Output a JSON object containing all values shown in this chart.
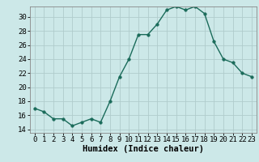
{
  "x": [
    0,
    1,
    2,
    3,
    4,
    5,
    6,
    7,
    8,
    9,
    10,
    11,
    12,
    13,
    14,
    15,
    16,
    17,
    18,
    19,
    20,
    21,
    22,
    23
  ],
  "y": [
    17,
    16.5,
    15.5,
    15.5,
    14.5,
    15,
    15.5,
    15,
    18,
    21.5,
    24,
    27.5,
    27.5,
    29,
    31,
    31.5,
    31,
    31.5,
    30.5,
    26.5,
    24,
    23.5,
    22,
    21.5
  ],
  "line_color": "#1a6b5a",
  "marker_color": "#1a6b5a",
  "bg_color": "#cce8e8",
  "grid_color": "#b0cccc",
  "xlabel": "Humidex (Indice chaleur)",
  "ylabel": "",
  "xlim": [
    -0.5,
    23.5
  ],
  "ylim": [
    13.5,
    31.5
  ],
  "yticks": [
    14,
    16,
    18,
    20,
    22,
    24,
    26,
    28,
    30
  ],
  "xticks": [
    0,
    1,
    2,
    3,
    4,
    5,
    6,
    7,
    8,
    9,
    10,
    11,
    12,
    13,
    14,
    15,
    16,
    17,
    18,
    19,
    20,
    21,
    22,
    23
  ],
  "tick_fontsize": 6.5,
  "label_fontsize": 7.5
}
